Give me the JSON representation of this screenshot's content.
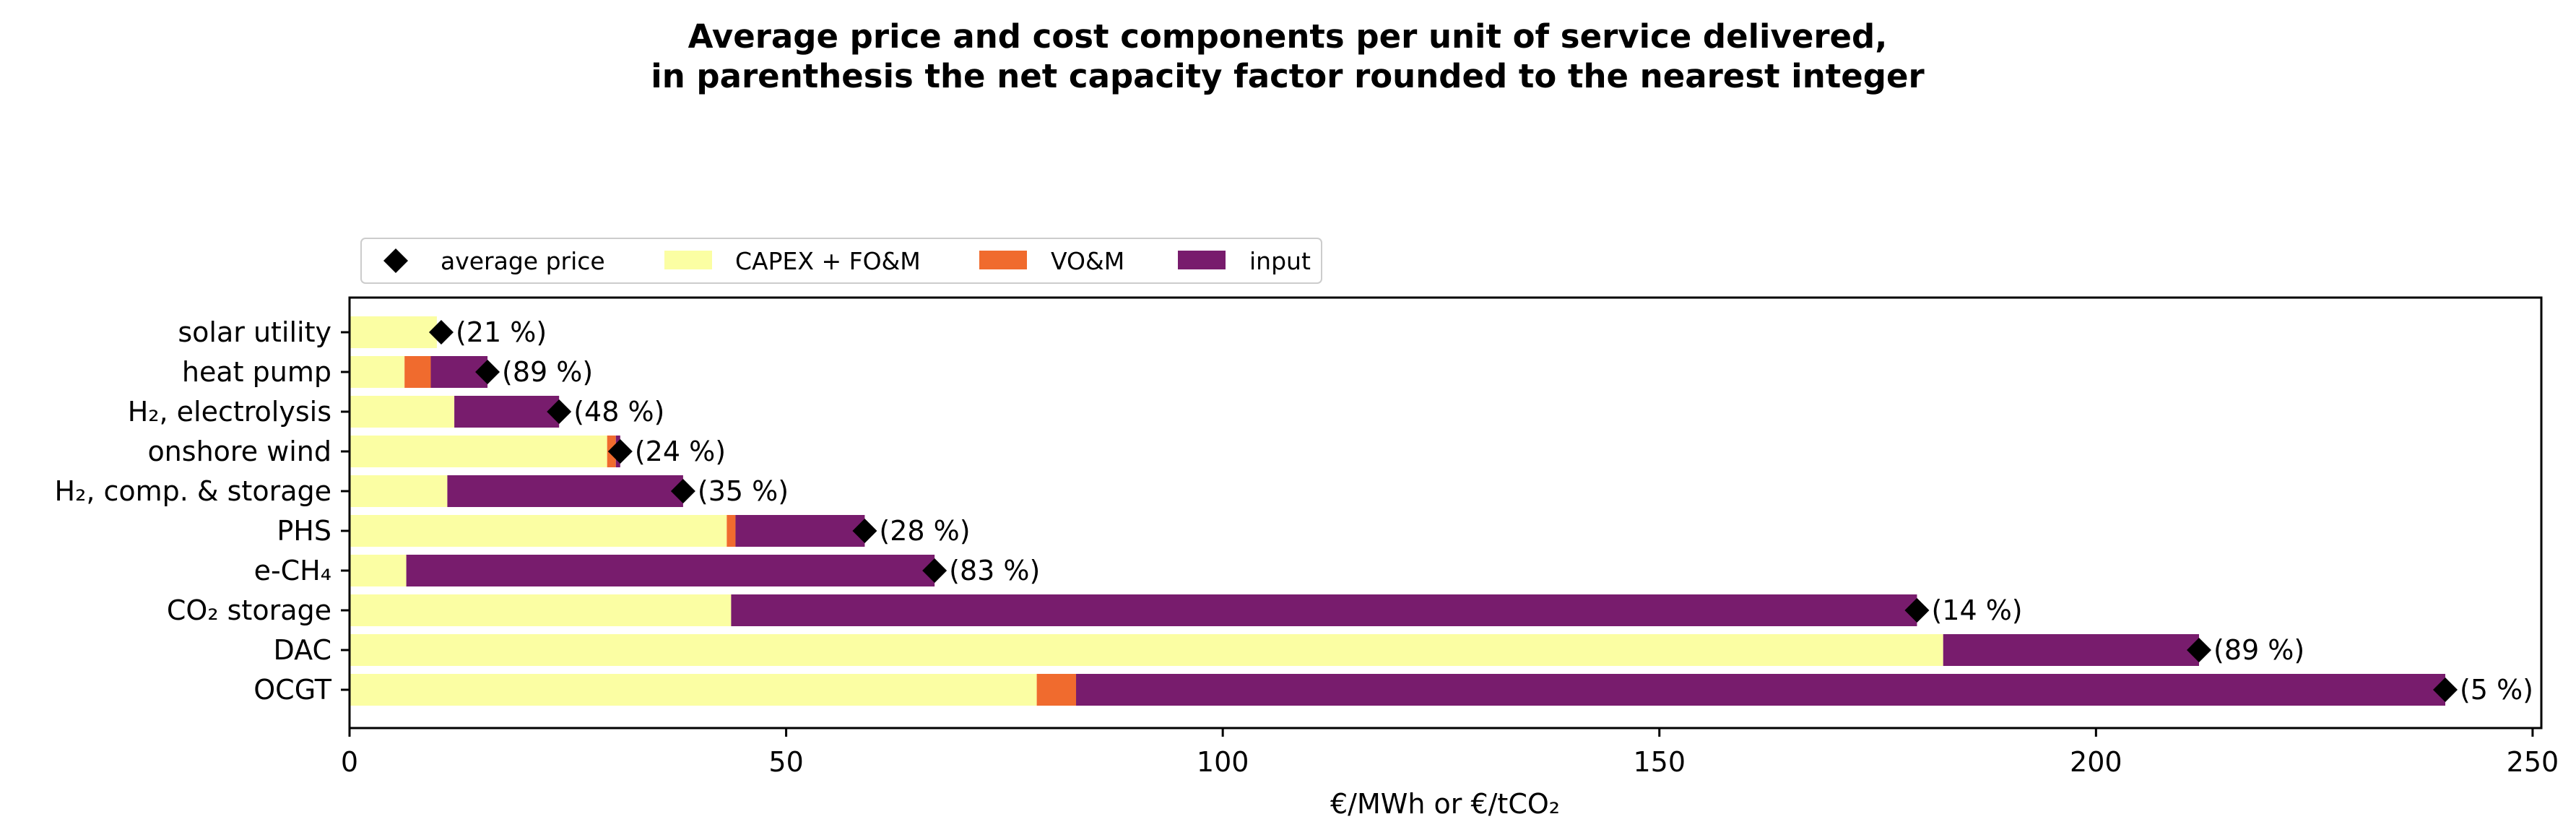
{
  "chart_data": {
    "type": "bar",
    "orientation": "horizontal",
    "stacked": true,
    "title_line1": "Average price and cost components per unit of service delivered,",
    "title_line2": "in parenthesis the net capacity factor rounded to the nearest integer",
    "xlabel": "€/MWh or €/tCO₂",
    "ylabel": "",
    "xlim": [
      0,
      251
    ],
    "xticks": [
      0,
      50,
      100,
      150,
      200,
      250
    ],
    "legend_position": "top-left",
    "categories": [
      "solar utility",
      "heat pump",
      "H₂, electrolysis",
      "onshore wind",
      "H₂, comp. & storage",
      "PHS",
      "e-CH₄",
      "CO₂ storage",
      "DAC",
      "OCGT"
    ],
    "series": [
      {
        "name": "CAPEX + FO&M",
        "color": "#fbfea3",
        "values": [
          10.0,
          6.3,
          12.0,
          29.5,
          11.2,
          43.2,
          6.5,
          43.7,
          182.5,
          78.7
        ]
      },
      {
        "name": "VO&M",
        "color": "#f06b2e",
        "values": [
          0.0,
          3.0,
          0.0,
          1.0,
          0.0,
          1.0,
          0.0,
          0.0,
          0.0,
          4.5
        ]
      },
      {
        "name": "input",
        "color": "#781c6d",
        "values": [
          0.0,
          6.5,
          12.0,
          0.5,
          27.0,
          14.8,
          60.5,
          135.8,
          29.3,
          156.8
        ]
      }
    ],
    "average_price": {
      "name": "average price",
      "marker": "diamond",
      "color": "#000000",
      "values": [
        10.5,
        15.8,
        24.0,
        31.0,
        38.2,
        59.0,
        67.0,
        179.5,
        211.8,
        240.0
      ]
    },
    "annotations": [
      "(21 %)",
      "(89 %)",
      "(48 %)",
      "(24 %)",
      "(35 %)",
      "(28 %)",
      "(83 %)",
      "(14 %)",
      "(89 %)",
      "(5 %)"
    ]
  }
}
